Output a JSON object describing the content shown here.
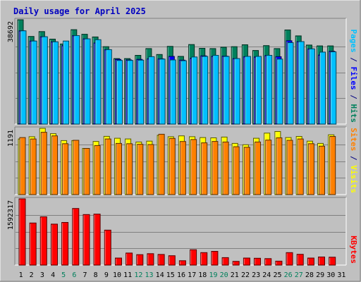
{
  "chart_data": {
    "type": "bar",
    "title": "Daily usage for April 2025",
    "categories": [
      "1",
      "2",
      "3",
      "4",
      "5",
      "6",
      "7",
      "8",
      "9",
      "10",
      "11",
      "12",
      "13",
      "14",
      "15",
      "16",
      "17",
      "18",
      "19",
      "20",
      "21",
      "22",
      "23",
      "24",
      "25",
      "26",
      "27",
      "28",
      "29",
      "30",
      "31"
    ],
    "weekend_days": [
      "5",
      "6",
      "12",
      "13",
      "19",
      "20",
      "26",
      "27"
    ],
    "panels": [
      {
        "id": "top",
        "max_label": "38692",
        "ylim": [
          0,
          38692
        ],
        "legend": [
          {
            "text": "Pages",
            "color": "#00c0ff"
          },
          {
            "text": " / ",
            "color": "#000080"
          },
          {
            "text": "Files",
            "color": "#0000ff"
          },
          {
            "text": " / ",
            "color": "#000080"
          },
          {
            "text": "Hits",
            "color": "#00805c"
          }
        ],
        "series": [
          {
            "name": "Hits",
            "color": "#00805c",
            "values": [
              38692,
              32500,
              34300,
              31500,
              29700,
              35000,
              33300,
              32300,
              28700,
              24300,
              24300,
              25500,
              28000,
              25800,
              28800,
              25100,
              29500,
              28100,
              28000,
              28500,
              28700,
              29400,
              27300,
              29100,
              28000,
              34900,
              32700,
              29300,
              29000,
              29000
            ]
          },
          {
            "name": "Files",
            "color": "#0000ff",
            "values": [
              34600,
              30800,
              32400,
              30500,
              29100,
              32800,
              31600,
              30100,
              27600,
              24000,
              23800,
              24000,
              24200,
              24200,
              25100,
              23700,
              24400,
              25300,
              25100,
              25200,
              24300,
              25000,
              24900,
              25400,
              25000,
              30900,
              30600,
              27900,
              25600,
              27000
            ]
          },
          {
            "name": "Pages",
            "color": "#00c0ff",
            "values": [
              34600,
              30800,
              32400,
              30500,
              30800,
              32800,
              31600,
              31300,
              27600,
              23600,
              23600,
              23700,
              25000,
              24100,
              23800,
              23500,
              24900,
              25100,
              25500,
              25100,
              24300,
              25100,
              25100,
              25500,
              24100,
              30200,
              30600,
              27900,
              26700,
              26800
            ]
          }
        ]
      },
      {
        "id": "mid",
        "max_label": "1191",
        "ylim": [
          0,
          1191
        ],
        "legend": [
          {
            "text": "Sites",
            "color": "#ff8000"
          },
          {
            "text": " / ",
            "color": "#000080"
          },
          {
            "text": "Visits",
            "color": "#ffff00"
          }
        ],
        "series": [
          {
            "name": "Visits",
            "color": "#ffff00",
            "values": [
              1000,
              1040,
              1191,
              1095,
              970,
              970,
              830,
              955,
              1046,
              1012,
              1000,
              945,
              960,
              1065,
              1040,
              1055,
              1040,
              1025,
              1020,
              1034,
              920,
              896,
              1012,
              1105,
              1134,
              1025,
              1045,
              960,
              920,
              1075
            ]
          },
          {
            "name": "Sites",
            "color": "#ff8000",
            "values": [
              1025,
              1000,
              1120,
              1056,
              915,
              975,
              830,
              880,
              1000,
              920,
              915,
              905,
              900,
              1085,
              1010,
              954,
              990,
              930,
              955,
              945,
              860,
              850,
              945,
              980,
              1020,
              975,
              1000,
              915,
              870,
              1045
            ]
          }
        ]
      },
      {
        "id": "bottom",
        "max_label": "1592317",
        "ylim": [
          0,
          1592317
        ],
        "legend": [
          {
            "text": "KBytes",
            "color": "#ff0000"
          }
        ],
        "series": [
          {
            "name": "KBytes",
            "color": "#ff0000",
            "values": [
              1592317,
              1012000,
              1160000,
              985000,
              1025000,
              1360000,
              1215000,
              1225000,
              840000,
              170000,
              290000,
              250000,
              275000,
              255000,
              225000,
              105000,
              370000,
              300000,
              330000,
              180000,
              90000,
              170000,
              165000,
              155000,
              95000,
              300000,
              260000,
              170000,
              195000,
              190000
            ]
          }
        ]
      }
    ]
  }
}
